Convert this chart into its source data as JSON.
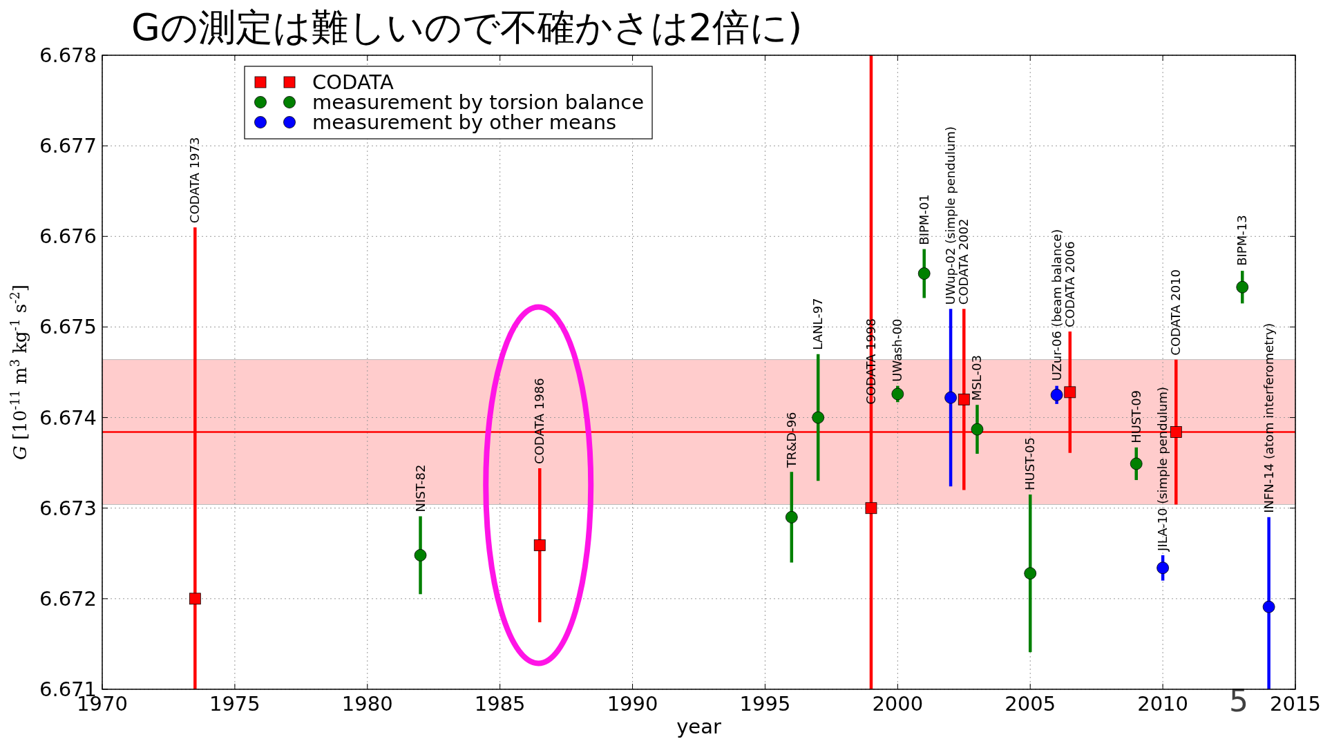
{
  "chart_data": {
    "type": "scatter",
    "title": "Gの測定は難しいので不確かさは2倍に)",
    "xlabel": "year",
    "ylabel": "*G* [10$^{-11}$ m$^{3}$ kg$^{-1}$ s$^{-2}$]",
    "xlim": [
      1970,
      2015
    ],
    "ylim": [
      6.671,
      6.678
    ],
    "xticks": [
      1970,
      1975,
      1980,
      1985,
      1990,
      1995,
      2000,
      2005,
      2010,
      2015
    ],
    "yticks": [
      6.671,
      6.672,
      6.673,
      6.674,
      6.675,
      6.676,
      6.677,
      6.678
    ],
    "grid": true,
    "legend": "top left",
    "series": [
      {
        "name": "CODATA",
        "color": "#ff0000",
        "marker": "square",
        "x": [
          1973.5,
          1986.5,
          1999,
          2002.5,
          2006.5,
          2010.5
        ],
        "values": [
          6.672,
          6.67259,
          6.673,
          6.6742,
          6.67428,
          6.67384
        ],
        "errors": [
          [
            6.671,
            6.6761
          ],
          0.00085,
          [
            6.671,
            6.678
          ],
          0.001,
          0.00067,
          0.0008
        ]
      },
      {
        "name": "measurement by torsion balance",
        "color": "#008000",
        "marker": "circle",
        "x": [
          1982,
          1996,
          1997,
          2000,
          2001,
          2003,
          2005,
          2009,
          2013
        ],
        "values": [
          6.67248,
          6.6729,
          6.674,
          6.67426,
          6.67559,
          6.67387,
          6.67228,
          6.67349,
          6.67544
        ],
        "errors": [
          0.00043,
          0.0005,
          0.0007,
          9e-05,
          0.00027,
          0.00027,
          0.00087,
          0.00018,
          0.00018
        ]
      },
      {
        "name": "measurement by other means",
        "color": "#0000ff",
        "marker": "circle",
        "x": [
          2002,
          2006,
          2010,
          2014
        ],
        "values": [
          6.67422,
          6.67425,
          6.67234,
          6.67191
        ],
        "errors": [
          0.00098,
          0.0001,
          0.00014,
          [
            6.671,
            6.6729
          ]
        ]
      }
    ],
    "ref_lines": [
      {
        "axis": "y",
        "value": 6.67384,
        "color": "#ff0000"
      }
    ],
    "bands": [
      {
        "axis": "y",
        "from": 6.67304,
        "to": 6.67464,
        "color": "#ffcccc"
      }
    ],
    "annotations": [
      {
        "text": "CODATA 1973",
        "x": 1973.5,
        "y": 6.6761
      },
      {
        "text": "NIST-82",
        "x": 1982,
        "y": 6.67291
      },
      {
        "text": "CODATA 1986",
        "x": 1986.5,
        "y": 6.67344
      },
      {
        "text": "TR&D-96",
        "x": 1996,
        "y": 6.6734
      },
      {
        "text": "LANL-97",
        "x": 1997,
        "y": 6.6747
      },
      {
        "text": "CODATA 1998",
        "x": 1999
      },
      {
        "text": "UWash-00",
        "x": 2000,
        "y": 6.67435
      },
      {
        "text": "BIPM-01",
        "x": 2001,
        "y": 6.67586
      },
      {
        "text": "UWup-02 (simple pendulum)",
        "x": 2002,
        "y": 6.6752
      },
      {
        "text": "CODATA 2002",
        "x": 2002.5,
        "y": 6.6752
      },
      {
        "text": "MSL-03",
        "x": 2003,
        "y": 6.67414
      },
      {
        "text": "HUST-05",
        "x": 2005,
        "y": 6.67315
      },
      {
        "text": "UZur-06 (beam balance)",
        "x": 2006,
        "y": 6.67436
      },
      {
        "text": "CODATA 2006",
        "x": 2006.5,
        "y": 6.67495
      },
      {
        "text": "HUST-09",
        "x": 2009,
        "y": 6.67367
      },
      {
        "text": "JILA-10 (simple pendulum)",
        "x": 2010,
        "y": 6.67248
      },
      {
        "text": "CODATA 2010",
        "x": 2010.5,
        "y": 6.67464
      },
      {
        "text": "BIPM-13",
        "x": 2013,
        "y": 6.67563
      },
      {
        "text": "INFN-14 (atom interferometry)",
        "x": 2014,
        "y": 6.6729
      },
      "5"
    ]
  }
}
